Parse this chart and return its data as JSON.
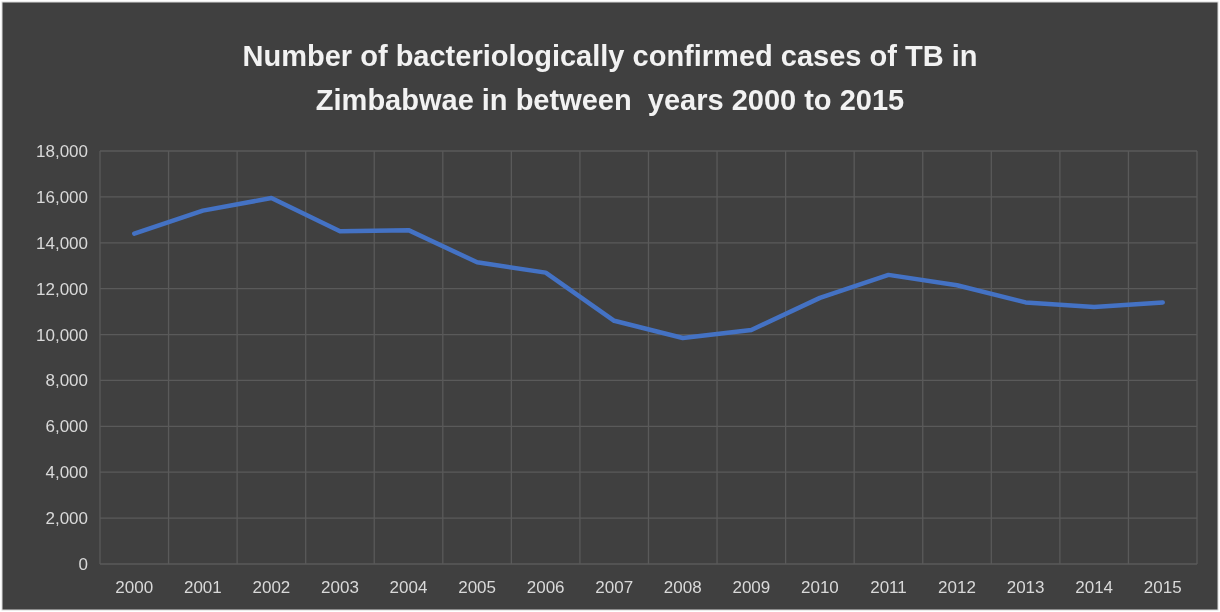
{
  "chart_data": {
    "type": "line",
    "title": "Number of bacteriologically confirmed cases of TB in Zimbabwae in between  years 2000 to 2015",
    "categories": [
      "2000",
      "2001",
      "2002",
      "2003",
      "2004",
      "2005",
      "2006",
      "2007",
      "2008",
      "2009",
      "2010",
      "2011",
      "2012",
      "2013",
      "2014",
      "2015"
    ],
    "series": [
      {
        "color": "#4472c4",
        "values": [
          14400,
          15400,
          15950,
          14500,
          14550,
          13150,
          12700,
          10600,
          9850,
          10200,
          11600,
          12600,
          12150,
          11400,
          11200,
          11400
        ]
      }
    ],
    "ylim": [
      0,
      18000
    ],
    "yticks": [
      0,
      {
        "value": 2000,
        "label": "2,000"
      },
      {
        "value": 4000,
        "label": "4,000"
      },
      {
        "value": 6000,
        "label": "6,000"
      },
      {
        "value": 8000,
        "label": "8,000"
      },
      {
        "value": 10000,
        "label": "10,000"
      },
      {
        "value": 12000,
        "label": "12,000"
      },
      {
        "value": 14000,
        "label": "14,000"
      },
      {
        "value": 16000,
        "label": "16,000"
      },
      {
        "value": 18000,
        "label": "18,000"
      }
    ],
    "grid": true,
    "marker": "none",
    "line_style": "solid"
  }
}
